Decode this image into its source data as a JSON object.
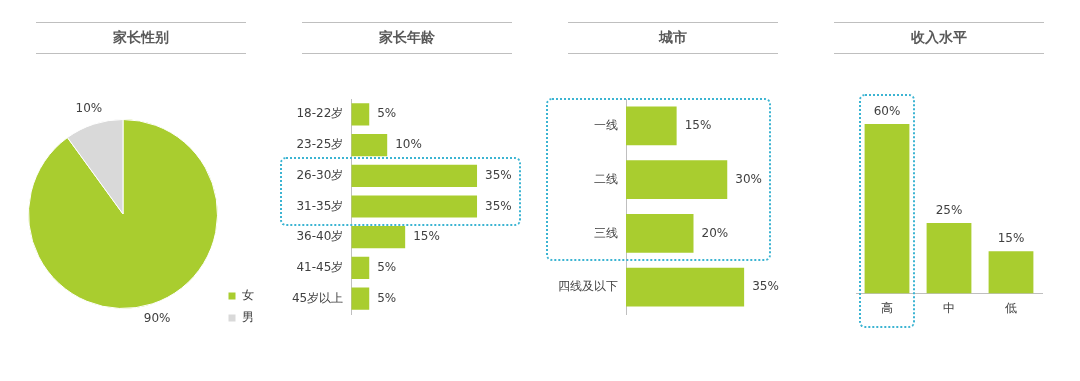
{
  "chart_data": [
    {
      "type": "pie",
      "title": "家长性别",
      "categories": [
        "女",
        "男"
      ],
      "values": [
        90,
        10
      ],
      "colors": [
        "#a9cd2f",
        "#d9d9d9"
      ],
      "value_labels": [
        "90%",
        "10%"
      ],
      "legend": "right"
    },
    {
      "type": "bar",
      "orientation": "horizontal",
      "title": "家长年龄",
      "categories": [
        "18-22岁",
        "23-25岁",
        "26-30岁",
        "31-35岁",
        "36-40岁",
        "41-45岁",
        "45岁以上"
      ],
      "values": [
        5,
        10,
        35,
        35,
        15,
        5,
        5
      ],
      "color": "#a9cd2f",
      "value_labels": [
        "5%",
        "10%",
        "35%",
        "35%",
        "15%",
        "5%",
        "5%"
      ],
      "grid": false
    },
    {
      "type": "bar",
      "orientation": "horizontal",
      "title": "城市",
      "categories": [
        "一线",
        "二线",
        "三线",
        "四线及以下"
      ],
      "values": [
        15,
        30,
        20,
        35
      ],
      "color": "#a9cd2f",
      "value_labels": [
        "15%",
        "30%",
        "20%",
        "35%"
      ],
      "grid": false
    },
    {
      "type": "bar",
      "title": "收入水平",
      "categories": [
        "高",
        "中",
        "低"
      ],
      "values": [
        60,
        25,
        15
      ],
      "color": "#a9cd2f",
      "value_labels": [
        "60%",
        "25%",
        "15%"
      ],
      "grid": false
    }
  ]
}
